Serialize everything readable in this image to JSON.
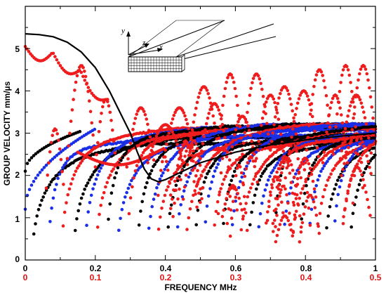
{
  "chart_data": {
    "type": "scatter",
    "title": "",
    "xlabel": "FREQUENCY  MHz",
    "ylabel": "GROUP VELOCITY  mm/µs",
    "xlim": [
      0,
      1
    ],
    "ylim": [
      0,
      6
    ],
    "x_ticks": [
      "0",
      "0.2",
      "0.4",
      "0.6",
      "0.8",
      "1"
    ],
    "x_ticks_secondary": [
      "0",
      "0.1",
      "0.2",
      "0.3",
      "0.4",
      "0.5"
    ],
    "y_ticks": [
      "0",
      "1",
      "2",
      "3",
      "4",
      "5"
    ],
    "grid": false,
    "colors": {
      "red": "#ee1c1c",
      "blue": "#1a2ee6",
      "black": "#000000",
      "secondary_axis": "#e01010"
    },
    "curve": {
      "x": [
        0.0,
        0.04,
        0.08,
        0.12,
        0.16,
        0.2,
        0.24,
        0.27,
        0.3,
        0.32,
        0.34,
        0.36,
        0.38,
        0.4,
        0.45,
        0.5,
        0.6,
        0.7,
        0.8,
        0.9,
        1.0
      ],
      "y": [
        5.35,
        5.33,
        5.28,
        5.15,
        4.92,
        4.55,
        4.0,
        3.5,
        3.0,
        2.55,
        2.15,
        1.92,
        1.85,
        1.9,
        2.1,
        2.3,
        2.55,
        2.72,
        2.84,
        2.93,
        3.0
      ]
    },
    "inset": {
      "axis_labels": [
        "y",
        "z",
        "x"
      ]
    }
  }
}
